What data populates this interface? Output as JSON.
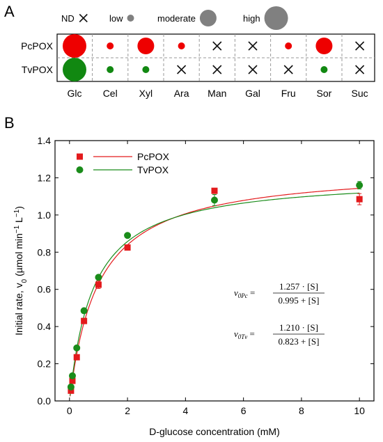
{
  "chart_data": [
    {
      "panel": "A",
      "type": "table",
      "legend": [
        {
          "label": "ND",
          "level": "nd"
        },
        {
          "label": "low",
          "level": "low"
        },
        {
          "label": "moderate",
          "level": "moderate"
        },
        {
          "label": "high",
          "level": "high"
        }
      ],
      "rows": [
        "PcPOX",
        "TvPOX"
      ],
      "columns": [
        "Glc",
        "Cel",
        "Xyl",
        "Ara",
        "Man",
        "Gal",
        "Fru",
        "Sor",
        "Suc"
      ],
      "values": [
        [
          "high",
          "low",
          "moderate",
          "low",
          "nd",
          "nd",
          "low",
          "moderate",
          "nd"
        ],
        [
          "high",
          "low",
          "low",
          "nd",
          "nd",
          "nd",
          "nd",
          "low",
          "nd"
        ]
      ],
      "colors": {
        "PcPOX": "#ee0000",
        "TvPOX": "#118811",
        "legend": "#808080"
      }
    },
    {
      "panel": "B",
      "type": "scatter",
      "xlabel": "D-glucose concentration (mM)",
      "ylabel": "Initial rate, v0 (µmol min−1 L−1)",
      "xlim": [
        -0.5,
        10.5
      ],
      "ylim": [
        0,
        1.4
      ],
      "xticks": [
        0,
        2,
        4,
        6,
        8,
        10
      ],
      "yticks": [
        0.0,
        0.2,
        0.4,
        0.6,
        0.8,
        1.0,
        1.2,
        1.4
      ],
      "legend_position": "top-left",
      "series": [
        {
          "name": "PcPOX",
          "marker": "square",
          "color": "#e31a1c",
          "x": [
            0.05,
            0.1,
            0.25,
            0.5,
            1,
            2,
            5,
            10
          ],
          "y": [
            0.055,
            0.108,
            0.235,
            0.43,
            0.625,
            0.825,
            1.13,
            1.085
          ],
          "yerr": [
            0.01,
            0.01,
            0.01,
            0.01,
            0.02,
            0.01,
            0.01,
            0.03
          ],
          "fit": {
            "vmax": 1.257,
            "km": 0.995
          }
        },
        {
          "name": "TvPOX",
          "marker": "circle",
          "color": "#1a8c1a",
          "x": [
            0.05,
            0.1,
            0.25,
            0.5,
            1,
            2,
            5,
            10
          ],
          "y": [
            0.075,
            0.135,
            0.285,
            0.485,
            0.665,
            0.89,
            1.08,
            1.16
          ],
          "yerr": [
            0.01,
            0.01,
            0.01,
            0.01,
            0.01,
            0.01,
            0.03,
            0.02
          ],
          "fit": {
            "vmax": 1.21,
            "km": 0.823
          }
        }
      ],
      "equations": [
        {
          "lhs": "v",
          "sub": "0Pc",
          "num": "1.257 · [S]",
          "den": "0.995 + [S]"
        },
        {
          "lhs": "v",
          "sub": "0Tv",
          "num": "1.210 · [S]",
          "den": "0.823 + [S]"
        }
      ]
    }
  ]
}
